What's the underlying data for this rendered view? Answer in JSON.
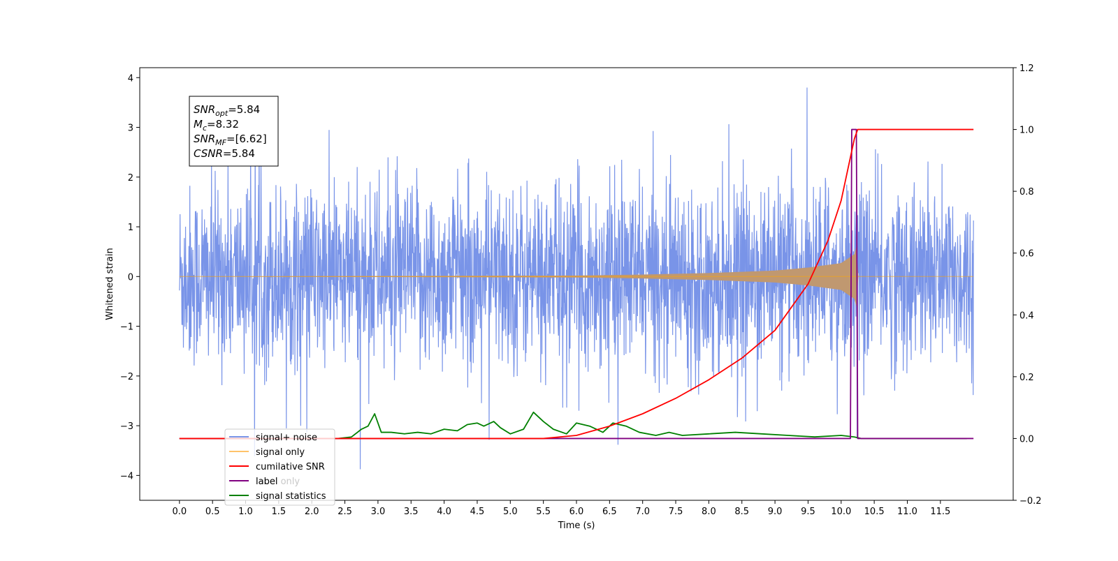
{
  "chart_data": {
    "type": "line",
    "title": "",
    "xlabel": "Time (s)",
    "ylabel": "Whitened strain",
    "y2label": "",
    "xlim": [
      -0.6,
      12.6
    ],
    "ylim": [
      -4.5,
      4.2
    ],
    "y2lim": [
      -0.2,
      1.2
    ],
    "x_ticks": [
      0.0,
      0.5,
      1.0,
      1.5,
      2.0,
      2.5,
      3.0,
      3.5,
      4.0,
      4.5,
      5.0,
      5.5,
      6.0,
      6.5,
      7.0,
      7.5,
      8.0,
      8.5,
      9.0,
      9.5,
      10.0,
      10.5,
      11.0,
      11.5
    ],
    "x_tick_labels": [
      "0.0",
      "0.5",
      "1.0",
      "1.5",
      "2.0",
      "2.5",
      "3.0",
      "3.5",
      "4.0",
      "4.5",
      "5.0",
      "5.5",
      "6.0",
      "6.5",
      "7.0",
      "7.5",
      "8.0",
      "8.5",
      "9.0",
      "9.5",
      "10.0",
      "10.5",
      "11.0",
      "11.5"
    ],
    "y_ticks": [
      -4,
      -3,
      -2,
      -1,
      0,
      1,
      2,
      3,
      4
    ],
    "y_tick_labels": [
      "−4",
      "−3",
      "−2",
      "−1",
      "0",
      "1",
      "2",
      "3",
      "4"
    ],
    "y2_ticks": [
      -0.2,
      0.0,
      0.2,
      0.4,
      0.6,
      0.8,
      1.0,
      1.2
    ],
    "y2_tick_labels": [
      "−0.2",
      "0.0",
      "0.2",
      "0.4",
      "0.6",
      "0.8",
      "1.0",
      "1.2"
    ],
    "grid": false,
    "legend_position": "lower-left",
    "stats_box": [
      {
        "base": "SNR",
        "sub": "opt",
        "value": "=5.84"
      },
      {
        "base": "M",
        "sub": "c",
        "value": "=8.32"
      },
      {
        "base": "SNR",
        "sub": "MF",
        "value": "=[6.62]"
      },
      {
        "base": "CSNR",
        "sub": "",
        "value": "=5.84"
      }
    ],
    "series": [
      {
        "name": "signal+ noise",
        "axis": "left",
        "color": "#7994e8",
        "t_start": 0.0,
        "t_end": 12.0,
        "noise_amplitude_std": 0.9,
        "envelope_max": 3.8,
        "envelope_min": -4.1
      },
      {
        "name": "signal only",
        "axis": "left",
        "color": "#ffa500",
        "fill_color": "#c09870",
        "envelope_points": [
          [
            0.0,
            0.0
          ],
          [
            6.0,
            0.02
          ],
          [
            7.0,
            0.04
          ],
          [
            8.0,
            0.07
          ],
          [
            9.0,
            0.12
          ],
          [
            9.5,
            0.18
          ],
          [
            10.0,
            0.27
          ],
          [
            10.2,
            0.45
          ],
          [
            10.25,
            0.7
          ],
          [
            10.26,
            0.0
          ],
          [
            12.0,
            0.0
          ]
        ]
      },
      {
        "name": "cumilative SNR",
        "axis": "right",
        "color": "#ff0000",
        "points": [
          [
            0.0,
            0.0
          ],
          [
            5.5,
            0.0
          ],
          [
            6.0,
            0.01
          ],
          [
            6.5,
            0.04
          ],
          [
            7.0,
            0.08
          ],
          [
            7.5,
            0.13
          ],
          [
            8.0,
            0.19
          ],
          [
            8.5,
            0.26
          ],
          [
            9.0,
            0.35
          ],
          [
            9.5,
            0.5
          ],
          [
            9.8,
            0.64
          ],
          [
            10.0,
            0.77
          ],
          [
            10.15,
            0.92
          ],
          [
            10.2,
            0.97
          ],
          [
            10.25,
            1.0
          ],
          [
            12.0,
            1.0
          ]
        ]
      },
      {
        "name": "label",
        "axis": "right",
        "color": "#800080",
        "points": [
          [
            0.0,
            0.0
          ],
          [
            10.14,
            0.0
          ],
          [
            10.16,
            1.0
          ],
          [
            10.23,
            1.0
          ],
          [
            10.25,
            0.0
          ],
          [
            12.0,
            0.0
          ]
        ]
      },
      {
        "name": "signal statistics",
        "axis": "right",
        "color": "#008000",
        "points": [
          [
            0.0,
            0.0
          ],
          [
            2.4,
            0.0
          ],
          [
            2.6,
            0.005
          ],
          [
            2.75,
            0.03
          ],
          [
            2.85,
            0.04
          ],
          [
            2.95,
            0.08
          ],
          [
            3.05,
            0.02
          ],
          [
            3.2,
            0.02
          ],
          [
            3.4,
            0.015
          ],
          [
            3.6,
            0.02
          ],
          [
            3.8,
            0.015
          ],
          [
            4.0,
            0.03
          ],
          [
            4.2,
            0.025
          ],
          [
            4.35,
            0.045
          ],
          [
            4.5,
            0.05
          ],
          [
            4.6,
            0.04
          ],
          [
            4.75,
            0.055
          ],
          [
            4.85,
            0.035
          ],
          [
            5.0,
            0.015
          ],
          [
            5.2,
            0.03
          ],
          [
            5.35,
            0.085
          ],
          [
            5.5,
            0.055
          ],
          [
            5.65,
            0.03
          ],
          [
            5.85,
            0.015
          ],
          [
            6.0,
            0.05
          ],
          [
            6.2,
            0.04
          ],
          [
            6.4,
            0.02
          ],
          [
            6.55,
            0.05
          ],
          [
            6.75,
            0.04
          ],
          [
            6.95,
            0.02
          ],
          [
            7.2,
            0.01
          ],
          [
            7.4,
            0.02
          ],
          [
            7.6,
            0.01
          ],
          [
            8.0,
            0.015
          ],
          [
            8.4,
            0.02
          ],
          [
            8.8,
            0.015
          ],
          [
            9.2,
            0.01
          ],
          [
            9.6,
            0.005
          ],
          [
            10.0,
            0.01
          ],
          [
            10.2,
            0.005
          ],
          [
            10.3,
            0.0
          ],
          [
            11.9,
            0.0
          ]
        ]
      }
    ],
    "legend_entries": [
      {
        "name": "signal+ noise",
        "color": "#7994e8",
        "overlay": ""
      },
      {
        "name": "signal only",
        "color": "#ffc36a",
        "overlay": ""
      },
      {
        "name": "cumilative SNR",
        "color": "#ff0000",
        "overlay": ""
      },
      {
        "name": "label",
        "color": "#800080",
        "overlay": "label only"
      },
      {
        "name": "signal statistics",
        "color": "#008000",
        "overlay": ""
      }
    ]
  }
}
